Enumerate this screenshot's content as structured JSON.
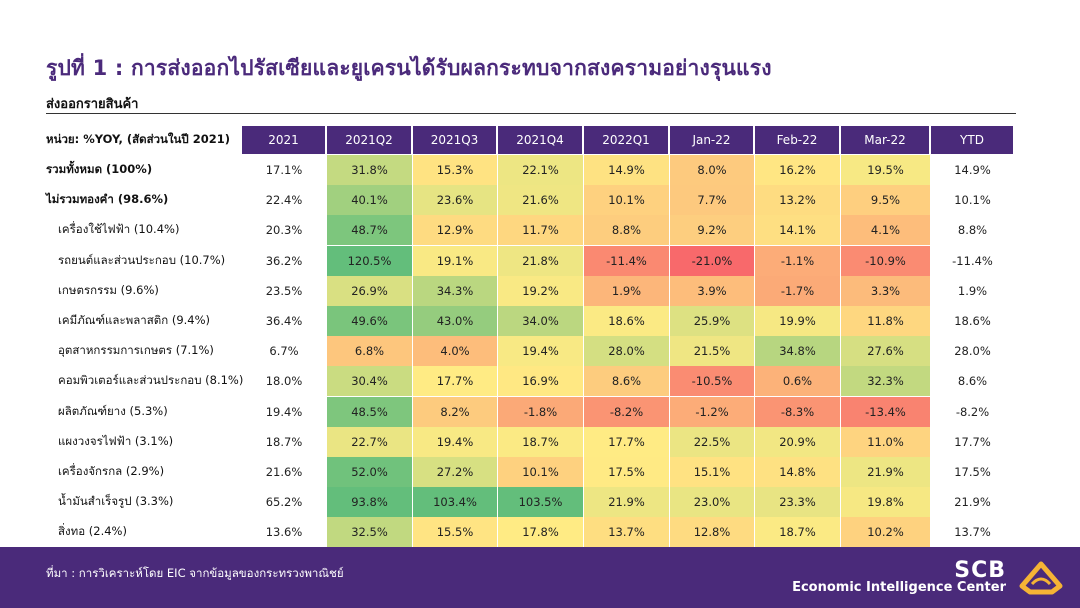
{
  "title": "รูปที่ 1 : การส่งออกไปรัสเซียและยูเครนได้รับผลกระทบจากสงครามอย่างรุนแรง",
  "subtitle": "ส่งออกรายสินค้า",
  "unit_label": "หน่วย: %YOY, (สัดส่วนในปี 2021)",
  "source": "ที่มา : การวิเคราะห์โดย EIC จากข้อมูลของกระทรวงพาณิชย์",
  "logo": {
    "brand": "SCB",
    "unit": "Economic Intelligence Center",
    "icon": "scb-logo-icon"
  },
  "colors": {
    "header": "#4a2a7a",
    "green": "#63be7b",
    "yellow": "#ffeb84",
    "red": "#f8696b"
  },
  "chart_data": {
    "type": "table",
    "columns": [
      "2021",
      "2021Q2",
      "2021Q3",
      "2021Q4",
      "2022Q1",
      "Jan-22",
      "Feb-22",
      "Mar-22",
      "YTD"
    ],
    "rows": [
      {
        "label": "รวมทั้งหมด (100%)",
        "bold": true,
        "values": [
          "17.1%",
          "31.8%",
          "15.3%",
          "22.1%",
          "14.9%",
          "8.0%",
          "16.2%",
          "19.5%",
          "14.9%"
        ],
        "nums": [
          17.1,
          31.8,
          15.3,
          22.1,
          14.9,
          8.0,
          16.2,
          19.5,
          14.9
        ]
      },
      {
        "label": "ไม่รวมทองคำ (98.6%)",
        "bold": true,
        "values": [
          "22.4%",
          "40.1%",
          "23.6%",
          "21.6%",
          "10.1%",
          "7.7%",
          "13.2%",
          "9.5%",
          "10.1%"
        ],
        "nums": [
          22.4,
          40.1,
          23.6,
          21.6,
          10.1,
          7.7,
          13.2,
          9.5,
          10.1
        ]
      },
      {
        "label": "เครื่องใช้ไฟฟ้า (10.4%)",
        "bold": false,
        "values": [
          "20.3%",
          "48.7%",
          "12.9%",
          "11.7%",
          "8.8%",
          "9.2%",
          "14.1%",
          "4.1%",
          "8.8%"
        ],
        "nums": [
          20.3,
          48.7,
          12.9,
          11.7,
          8.8,
          9.2,
          14.1,
          4.1,
          8.8
        ]
      },
      {
        "label": "รถยนต์และส่วนประกอบ (10.7%)",
        "bold": false,
        "values": [
          "36.2%",
          "120.5%",
          "19.1%",
          "21.8%",
          "-11.4%",
          "-21.0%",
          "-1.1%",
          "-10.9%",
          "-11.4%"
        ],
        "nums": [
          36.2,
          120.5,
          19.1,
          21.8,
          -11.4,
          -21.0,
          -1.1,
          -10.9,
          -11.4
        ]
      },
      {
        "label": "เกษตรกรรม (9.6%)",
        "bold": false,
        "values": [
          "23.5%",
          "26.9%",
          "34.3%",
          "19.2%",
          "1.9%",
          "3.9%",
          "-1.7%",
          "3.3%",
          "1.9%"
        ],
        "nums": [
          23.5,
          26.9,
          34.3,
          19.2,
          1.9,
          3.9,
          -1.7,
          3.3,
          1.9
        ]
      },
      {
        "label": "เคมีภัณฑ์และพลาสติก (9.4%)",
        "bold": false,
        "values": [
          "36.4%",
          "49.6%",
          "43.0%",
          "34.0%",
          "18.6%",
          "25.9%",
          "19.9%",
          "11.8%",
          "18.6%"
        ],
        "nums": [
          36.4,
          49.6,
          43.0,
          34.0,
          18.6,
          25.9,
          19.9,
          11.8,
          18.6
        ]
      },
      {
        "label": "อุตสาหกรรมการเกษตร (7.1%)",
        "bold": false,
        "values": [
          "6.7%",
          "6.8%",
          "4.0%",
          "19.4%",
          "28.0%",
          "21.5%",
          "34.8%",
          "27.6%",
          "28.0%"
        ],
        "nums": [
          6.7,
          6.8,
          4.0,
          19.4,
          28.0,
          21.5,
          34.8,
          27.6,
          28.0
        ]
      },
      {
        "label": "คอมพิวเตอร์และส่วนประกอบ (8.1%)",
        "bold": false,
        "values": [
          "18.0%",
          "30.4%",
          "17.7%",
          "16.9%",
          "8.6%",
          "-10.5%",
          "0.6%",
          "32.3%",
          "8.6%"
        ],
        "nums": [
          18.0,
          30.4,
          17.7,
          16.9,
          8.6,
          -10.5,
          0.6,
          32.3,
          8.6
        ]
      },
      {
        "label": "ผลิตภัณฑ์ยาง (5.3%)",
        "bold": false,
        "values": [
          "19.4%",
          "48.5%",
          "8.2%",
          "-1.8%",
          "-8.2%",
          "-1.2%",
          "-8.3%",
          "-13.4%",
          "-8.2%"
        ],
        "nums": [
          19.4,
          48.5,
          8.2,
          -1.8,
          -8.2,
          -1.2,
          -8.3,
          -13.4,
          -8.2
        ]
      },
      {
        "label": "แผงวงจรไฟฟ้า (3.1%)",
        "bold": false,
        "values": [
          "18.7%",
          "22.7%",
          "19.4%",
          "18.7%",
          "17.7%",
          "22.5%",
          "20.9%",
          "11.0%",
          "17.7%"
        ],
        "nums": [
          18.7,
          22.7,
          19.4,
          18.7,
          17.7,
          22.5,
          20.9,
          11.0,
          17.7
        ]
      },
      {
        "label": "เครื่องจักรกล (2.9%)",
        "bold": false,
        "values": [
          "21.6%",
          "52.0%",
          "27.2%",
          "10.1%",
          "17.5%",
          "15.1%",
          "14.8%",
          "21.9%",
          "17.5%"
        ],
        "nums": [
          21.6,
          52.0,
          27.2,
          10.1,
          17.5,
          15.1,
          14.8,
          21.9,
          17.5
        ]
      },
      {
        "label": "น้ำมันสำเร็จรูป (3.3%)",
        "bold": false,
        "values": [
          "65.2%",
          "93.8%",
          "103.4%",
          "103.5%",
          "21.9%",
          "23.0%",
          "23.3%",
          "19.8%",
          "21.9%"
        ],
        "nums": [
          65.2,
          93.8,
          103.4,
          103.5,
          21.9,
          23.0,
          23.3,
          19.8,
          21.9
        ]
      },
      {
        "label": "สิ่งทอ (2.4%)",
        "bold": false,
        "values": [
          "13.6%",
          "32.5%",
          "15.5%",
          "17.8%",
          "13.7%",
          "12.8%",
          "18.7%",
          "10.2%",
          "13.7%"
        ],
        "nums": [
          13.6,
          32.5,
          15.5,
          17.8,
          13.7,
          12.8,
          18.7,
          10.2,
          13.7
        ]
      }
    ],
    "color_scale": {
      "colored_columns": [
        "2021Q2",
        "2021Q3",
        "2021Q4",
        "2022Q1",
        "Jan-22",
        "Feb-22",
        "Mar-22"
      ],
      "low": "red",
      "mid": "yellow",
      "high": "green"
    }
  }
}
